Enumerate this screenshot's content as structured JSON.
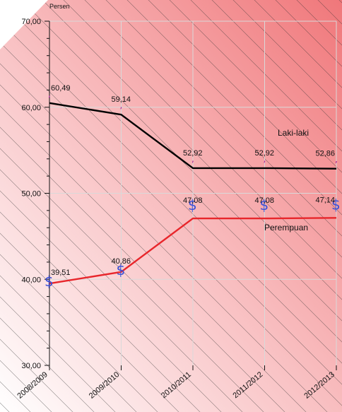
{
  "chart_data": {
    "type": "line",
    "unit_label": "Persen",
    "categories": [
      "2008/2009",
      "2009/2010",
      "2010/2011",
      "2011/2012",
      "2012/2013"
    ],
    "ylim": [
      30,
      70
    ],
    "y_ticks": [
      "30,00",
      "40,00",
      "50,00",
      "60,00",
      "70,00"
    ],
    "grid": true,
    "series": [
      {
        "name": "Laki-laki",
        "color": "#000000",
        "values": [
          60.49,
          59.14,
          52.92,
          52.92,
          52.86
        ],
        "value_labels": [
          "60,49",
          "59,14",
          "52,92",
          "52,92",
          "52,86"
        ],
        "marker_glyph": "comma-mark"
      },
      {
        "name": "Perempuan",
        "color": "#e8262b",
        "values": [
          39.51,
          40.86,
          47.08,
          47.08,
          47.14
        ],
        "value_labels": [
          "39,51",
          "40,86",
          "47,08",
          "47,08",
          "47,14"
        ],
        "marker_glyph": "dollar-sign"
      }
    ],
    "background": {
      "gradient": [
        "#ffffff",
        "#f0777a"
      ],
      "pattern": "diagonal-hatch"
    }
  }
}
